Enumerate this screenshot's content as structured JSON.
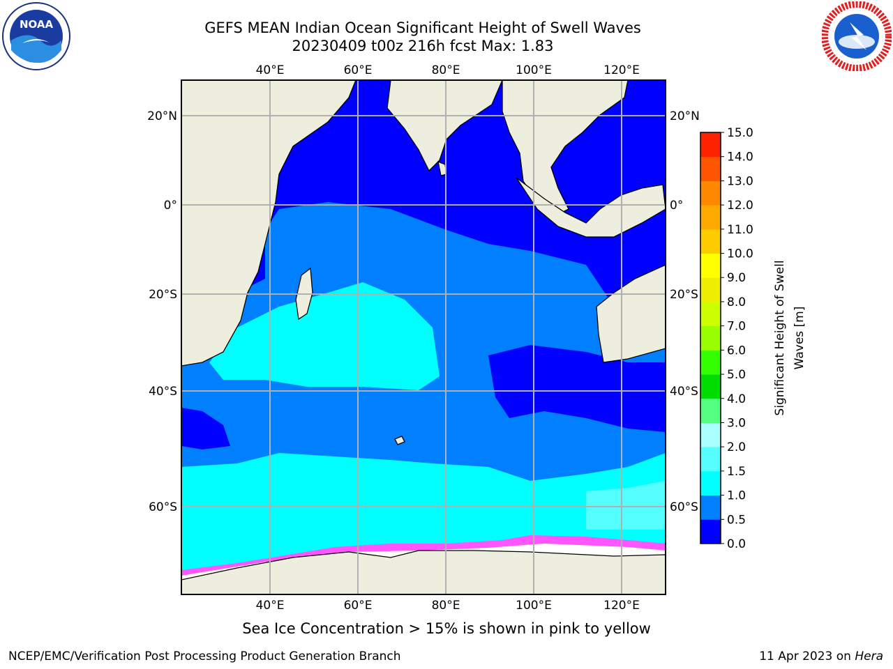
{
  "title": {
    "line1": "GEFS MEAN Indian Ocean Significant Height of Swell Waves",
    "line2": "20230409 t00z 216h fcst   Max: 1.83"
  },
  "map": {
    "lon_ticks": [
      "40°E",
      "60°E",
      "80°E",
      "100°E",
      "120°E"
    ],
    "lat_ticks": [
      "20°N",
      "0°",
      "20°S",
      "40°S",
      "60°S"
    ],
    "extent": {
      "lon": [
        20,
        130
      ],
      "lat": [
        -75,
        27
      ]
    },
    "colors": {
      "land": "#eeeede",
      "deep_blue": "#0000ff",
      "mid_blue": "#0080ff",
      "cyan": "#00ffff",
      "light_cyan": "#55ffff",
      "pale_cyan": "#aaffff",
      "grid": "#b0b0b0",
      "ice_pink": "#ff55ff",
      "ice_yellow": "#ffcc33"
    }
  },
  "colorbar": {
    "label": "Significant Height of Swell Waves [m]",
    "ticks": [
      "0.0",
      "0.5",
      "1.0",
      "1.5",
      "2.0",
      "3.0",
      "4.0",
      "5.0",
      "6.0",
      "7.0",
      "8.0",
      "9.0",
      "10.0",
      "11.0",
      "12.0",
      "13.0",
      "14.0",
      "15.0"
    ],
    "colors": [
      "#0000ff",
      "#0080ff",
      "#00ffff",
      "#55ffff",
      "#aaffff",
      "#55ff80",
      "#00dd00",
      "#33ff00",
      "#99ff00",
      "#ccff00",
      "#eeee00",
      "#ffff00",
      "#ffcc00",
      "#ffaa00",
      "#ff8800",
      "#ff5500",
      "#ff2200"
    ]
  },
  "footer": {
    "note": "Sea Ice Concentration > 15% is shown in pink to yellow",
    "left": "NCEP/EMC/Verification Post Processing Product Generation Branch",
    "right_prefix": "11 Apr 2023 on ",
    "right_host": "Hera"
  },
  "logos": {
    "left_icon": "noaa-logo-icon",
    "right_icon": "nws-logo-icon"
  }
}
